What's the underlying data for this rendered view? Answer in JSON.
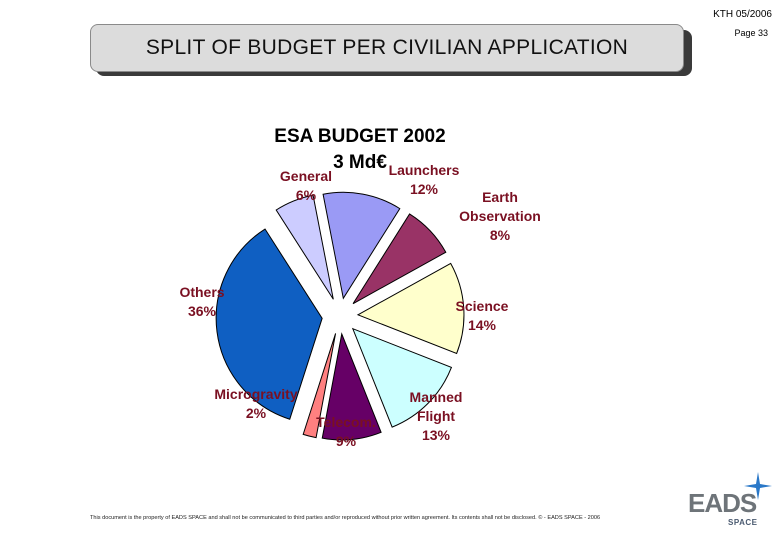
{
  "header": {
    "date": "KTH 05/2006",
    "page": "Page 33",
    "title": "SPLIT OF BUDGET  PER  CIVILIAN APPLICATION"
  },
  "chart_data": {
    "type": "pie",
    "title_line1": "ESA BUDGET 2002",
    "title_line2": "3 Md€",
    "slices": [
      {
        "label1": "Launchers",
        "label2": "12%",
        "label3": "",
        "value": 12,
        "color": "#9a9af5"
      },
      {
        "label1": "Earth",
        "label2": "Observation",
        "label3": "8%",
        "value": 8,
        "color": "#993366"
      },
      {
        "label1": "Science",
        "label2": "14%",
        "label3": "",
        "value": 14,
        "color": "#ffffcc"
      },
      {
        "label1": "Manned",
        "label2": "Flight",
        "label3": "13%",
        "value": 13,
        "color": "#ccffff"
      },
      {
        "label1": "Telecom.",
        "label2": "9%",
        "label3": "",
        "value": 9,
        "color": "#660066"
      },
      {
        "label1": "Microgravity",
        "label2": "2%",
        "label3": "",
        "value": 2,
        "color": "#ff8080"
      },
      {
        "label1": "Others",
        "label2": "36%",
        "label3": "",
        "value": 36,
        "color": "#0f5fc2"
      },
      {
        "label1": "General",
        "label2": "6%",
        "label3": "",
        "value": 6,
        "color": "#ccccff"
      }
    ]
  },
  "footer": {
    "note": "This document is the property of EADS SPACE and shall not be communicated to third parties and/or reproduced without prior written agreement. Its contents shall not be disclosed.  © - EADS SPACE - 2006"
  },
  "logo": {
    "name": "EADS",
    "sub": "SPACE"
  }
}
